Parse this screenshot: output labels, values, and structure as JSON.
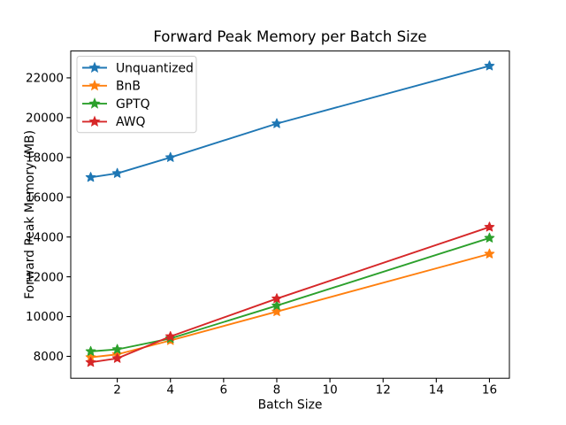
{
  "window": {
    "background": "#ffffff"
  },
  "chart_data": {
    "type": "line",
    "title": "Forward Peak Memory per Batch Size",
    "xlabel": "Batch Size",
    "ylabel": "Forward Peak Memory (MB)",
    "x": [
      1,
      2,
      4,
      8,
      16
    ],
    "series": [
      {
        "name": "Unquantized",
        "color": "#1f77b4",
        "values": [
          17000,
          17200,
          18000,
          19700,
          22600
        ]
      },
      {
        "name": "BnB",
        "color": "#ff7f0e",
        "values": [
          7950,
          8100,
          8800,
          10250,
          13150
        ]
      },
      {
        "name": "GPTQ",
        "color": "#2ca02c",
        "values": [
          8250,
          8350,
          8900,
          10550,
          13950
        ]
      },
      {
        "name": "AWQ",
        "color": "#d62728",
        "values": [
          7700,
          7900,
          9000,
          10900,
          14500
        ]
      }
    ],
    "xticks": [
      2,
      4,
      6,
      8,
      10,
      12,
      14,
      16
    ],
    "yticks": [
      8000,
      10000,
      12000,
      14000,
      16000,
      18000,
      20000,
      22000
    ],
    "xlim": [
      0.25,
      16.75
    ],
    "ylim": [
      6900,
      23350
    ],
    "grid": false,
    "marker": "star",
    "legend": {
      "position": "upper-left",
      "border_color": "#cccccc",
      "background": "#ffffff"
    },
    "axis_color": "#000000",
    "text_color": "#000000"
  }
}
